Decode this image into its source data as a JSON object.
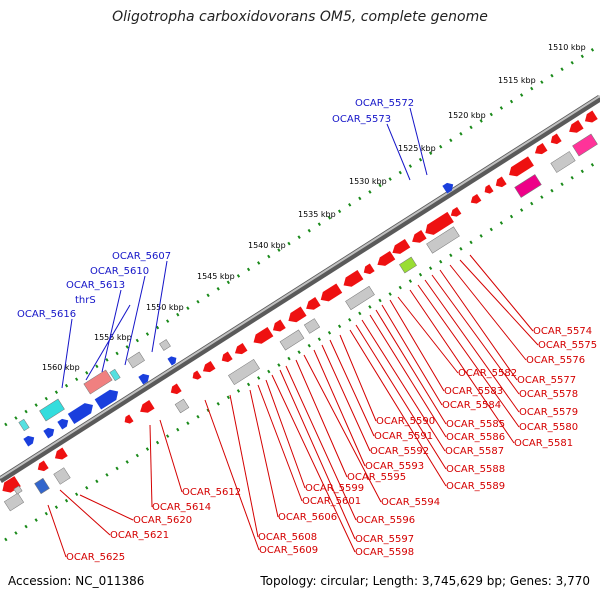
{
  "title": "Oligotropha carboxidovorans OM5, complete genome",
  "footer": {
    "accession": "Accession: NC_011386",
    "summary": "Topology: circular; Length: 3,745,629 bp; Genes: 3,770"
  },
  "ticks": [
    "1510 kbp",
    "1515 kbp",
    "1520 kbp",
    "1525 kbp",
    "1530 kbp",
    "1535 kbp",
    "1540 kbp",
    "1545 kbp",
    "1550 kbp",
    "1555 kbp",
    "1560 kbp"
  ],
  "labels_forward": [
    "OCAR_5572",
    "OCAR_5573",
    "OCAR_5607",
    "OCAR_5610",
    "OCAR_5613",
    "thrS",
    "OCAR_5616"
  ],
  "labels_reverse": [
    "OCAR_5574",
    "OCAR_5575",
    "OCAR_5576",
    "OCAR_5577",
    "OCAR_5578",
    "OCAR_5579",
    "OCAR_5580",
    "OCAR_5581",
    "OCAR_5582",
    "OCAR_5583",
    "OCAR_5584",
    "OCAR_5585",
    "OCAR_5586",
    "OCAR_5587",
    "OCAR_5588",
    "OCAR_5589",
    "OCAR_5590",
    "OCAR_5591",
    "OCAR_5592",
    "OCAR_5593",
    "OCAR_5594",
    "OCAR_5595",
    "OCAR_5596",
    "OCAR_5597",
    "OCAR_5598",
    "OCAR_5599",
    "OCAR_5601",
    "OCAR_5606",
    "OCAR_5608",
    "OCAR_5609",
    "OCAR_5612",
    "OCAR_5614",
    "OCAR_5620",
    "OCAR_5621",
    "OCAR_5625"
  ],
  "colors": {
    "forward_label": "#1515c8",
    "reverse_label": "#d40000",
    "tick": "#1a8a1a",
    "backbone": "#888888"
  }
}
